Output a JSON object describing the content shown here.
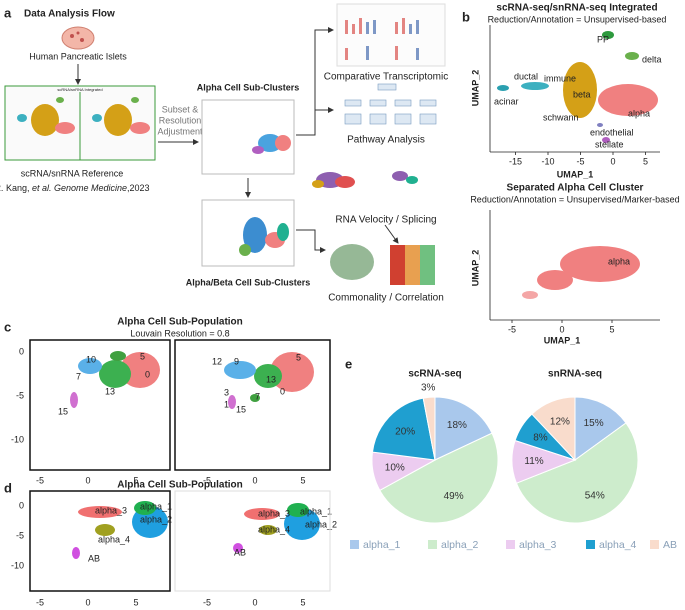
{
  "panel_a": {
    "label": "a",
    "title": "Data Analysis Flow",
    "source": "Human Pancreatic Islets",
    "reference": "scRNA/snRNA Reference",
    "citation": [
      "R. Kang, ",
      "et al. Genome Medicine",
      ",2023"
    ],
    "thumbnail_title": "scRNA/snRNA Integrated",
    "step": [
      "Subset &",
      "Resolution",
      "Adjustment"
    ],
    "alpha_clusters": "Alpha Cell Sub-Clusters",
    "alpha_beta_clusters": "Alpha/Beta Cell Sub-Clusters",
    "analyses": [
      "Comparative Transcriptomic",
      "Pathway Analysis",
      "RNA Velocity / Splicing",
      "Commonality / Correlation"
    ]
  },
  "panel_b": {
    "label": "b",
    "xlabel": "UMAP_1",
    "ylabel": "UMAP_2",
    "plots": [
      {
        "title": "scRNA-seq/snRNA-seq Integrated",
        "subtitle": "Reduction/Annotation = Unsupervised-based",
        "clusters": [
          "PP",
          "delta",
          "ductal",
          "immune",
          "acinar",
          "beta",
          "schwann",
          "endothelial",
          "stellate",
          "alpha"
        ],
        "xticks": [
          -15,
          -10,
          -5,
          0,
          5
        ]
      },
      {
        "title": "Separated Alpha Cell Cluster",
        "subtitle": "Reduction/Annotation =  Unsupervised/Marker-based",
        "clusters": [
          "alpha"
        ],
        "xticks": [
          -5,
          0,
          5
        ]
      }
    ]
  },
  "panel_c": {
    "label": "c",
    "title": "Alpha Cell Sub-Population",
    "subtitle": "Louvain Resolution = 0.8",
    "yticks": [
      0,
      -5,
      -10
    ],
    "xticks": [
      -5,
      0,
      5
    ],
    "clusters_left": [
      "10",
      "5",
      "7",
      "0",
      "13",
      "15"
    ],
    "clusters_right": [
      "12",
      "9",
      "13",
      "5",
      "3",
      "0",
      "1",
      "15",
      "7"
    ]
  },
  "panel_d": {
    "label": "d",
    "title": "Alpha Cell Sub-Population",
    "yticks": [
      0,
      -5,
      -10
    ],
    "xticks": [
      -5,
      0,
      5
    ],
    "clusters_left": [
      "alpha_3",
      "alpha_1",
      "alpha_2",
      "alpha_4",
      "AB"
    ],
    "clusters_right": [
      "alpha_3",
      "alpha_1",
      "alpha_2",
      "alpha_4",
      "AB"
    ]
  },
  "chart_data": {
    "type": "pie",
    "label": "e",
    "categories": [
      "alpha_1",
      "alpha_2",
      "alpha_3",
      "alpha_4",
      "AB"
    ],
    "colors": [
      "#a9c8ec",
      "#cdeccc",
      "#ecccf0",
      "#1f9fd0",
      "#f9dccc"
    ],
    "series": [
      {
        "name": "scRNA-seq",
        "values": [
          18,
          49,
          10,
          20,
          3
        ],
        "value_labels": [
          "18%",
          "49%",
          "10%",
          "20%",
          "3%"
        ]
      },
      {
        "name": "snRNA-seq",
        "values": [
          15,
          54,
          11,
          8,
          12
        ],
        "value_labels": [
          "15%",
          "54%",
          "11%",
          "8%",
          "12%"
        ]
      }
    ]
  }
}
